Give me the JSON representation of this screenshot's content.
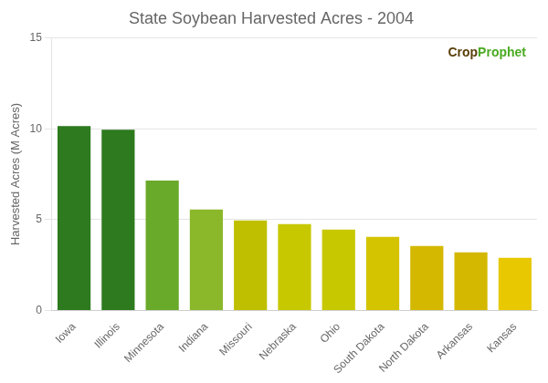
{
  "chart_data": {
    "type": "bar",
    "title": "State Soybean Harvested Acres - 2004",
    "ylabel": "Harvested Acres (M Acres)",
    "categories": [
      "Iowa",
      "Illinois",
      "Minnesota",
      "Indiana",
      "Missouri",
      "Nebraska",
      "Ohio",
      "South Dakota",
      "North Dakota",
      "Arkansas",
      "Kansas"
    ],
    "values": [
      10.15,
      9.95,
      7.15,
      5.55,
      4.95,
      4.75,
      4.45,
      4.05,
      3.55,
      3.2,
      2.9
    ],
    "colors": [
      "#2d7a1f",
      "#2d7a1f",
      "#6aaa2a",
      "#8ab82a",
      "#bfbf00",
      "#c8c800",
      "#c8c800",
      "#d4c400",
      "#d4b800",
      "#d4b800",
      "#e8c800"
    ],
    "ylim": [
      0,
      15
    ],
    "yticks": [
      0,
      5,
      10,
      15
    ],
    "grid": true,
    "annotations": [
      {
        "text": "Crop",
        "color": "#5a3e0a"
      },
      {
        "text": "Prophet",
        "color": "#4aaa20"
      }
    ]
  }
}
